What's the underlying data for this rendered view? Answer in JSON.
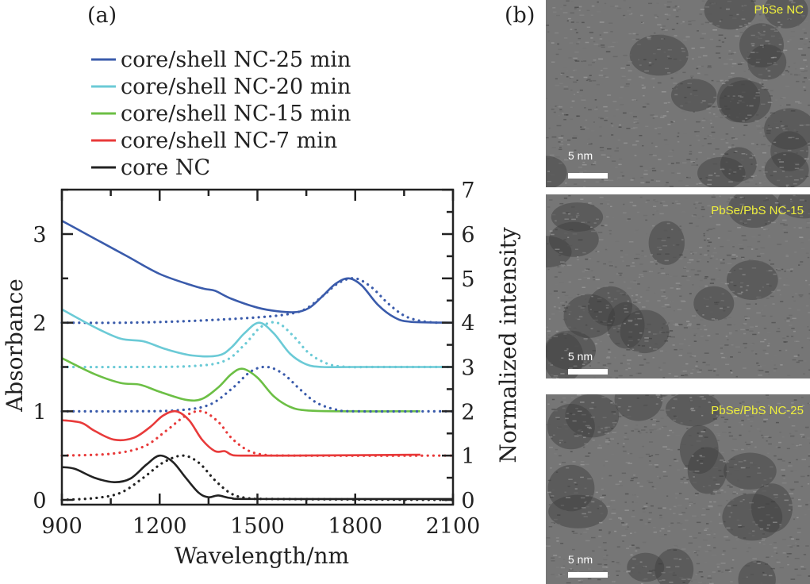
{
  "figure": {
    "panel_a_label": "(a)",
    "panel_b_label": "(b)"
  },
  "chart_data": {
    "type": "line",
    "title": "",
    "xlabel": "Wavelength/nm",
    "ylabel": "Absorbance",
    "y2label": "Normalized intensity",
    "xlim": [
      900,
      2100
    ],
    "ylim": [
      0,
      3.5
    ],
    "y2lim": [
      0,
      7
    ],
    "xticks": [
      900,
      1200,
      1500,
      1800,
      2100
    ],
    "yticks": [
      0,
      1,
      2,
      3
    ],
    "y2ticks": [
      0,
      1,
      2,
      3,
      4,
      5,
      6,
      7
    ],
    "grid": false,
    "legend_position": "top-left-above",
    "legend": [
      {
        "label": "core/shell NC-25 min",
        "color": "#3a5bab"
      },
      {
        "label": "core/shell NC-20 min",
        "color": "#6bcad6"
      },
      {
        "label": "core/shell NC-15 min",
        "color": "#6cbf45"
      },
      {
        "label": "core/shell NC-7 min",
        "color": "#e83a3a"
      },
      {
        "label": "core NC",
        "color": "#222222"
      }
    ],
    "series": [
      {
        "name": "core/shell NC-25 min absorbance",
        "style": "solid",
        "color": "#3a5bab",
        "x": [
          900,
          950,
          1000,
          1100,
          1200,
          1300,
          1340,
          1370,
          1420,
          1500,
          1560,
          1620,
          1660,
          1700,
          1740,
          1780,
          1820,
          1870,
          1920,
          1970,
          2100
        ],
        "y": [
          3.15,
          3.05,
          2.95,
          2.75,
          2.55,
          2.42,
          2.38,
          2.36,
          2.27,
          2.17,
          2.13,
          2.12,
          2.17,
          2.3,
          2.44,
          2.5,
          2.42,
          2.2,
          2.06,
          2.01,
          2.0
        ]
      },
      {
        "name": "core/shell NC-25 min PL",
        "style": "dotted",
        "color": "#3a5bab",
        "x": [
          900,
          1100,
          1300,
          1500,
          1600,
          1650,
          1700,
          1750,
          1800,
          1850,
          1900,
          1950,
          2000,
          2050
        ],
        "y": [
          2.0,
          2.0,
          2.02,
          2.06,
          2.1,
          2.16,
          2.3,
          2.45,
          2.5,
          2.4,
          2.22,
          2.08,
          2.02,
          2.0
        ]
      },
      {
        "name": "core/shell NC-20 min absorbance",
        "style": "solid",
        "color": "#6bcad6",
        "x": [
          900,
          1000,
          1080,
          1150,
          1220,
          1300,
          1380,
          1420,
          1460,
          1505,
          1550,
          1600,
          1650,
          1700,
          1800,
          2100
        ],
        "y": [
          2.15,
          1.95,
          1.82,
          1.79,
          1.7,
          1.63,
          1.63,
          1.72,
          1.88,
          2.0,
          1.88,
          1.65,
          1.53,
          1.5,
          1.5,
          1.5
        ]
      },
      {
        "name": "core/shell NC-20 min PL",
        "style": "dotted",
        "color": "#6bcad6",
        "x": [
          900,
          1100,
          1300,
          1400,
          1460,
          1510,
          1560,
          1610,
          1660,
          1720,
          1780,
          1850,
          2100
        ],
        "y": [
          1.5,
          1.5,
          1.51,
          1.57,
          1.75,
          1.95,
          2.0,
          1.85,
          1.65,
          1.53,
          1.5,
          1.5,
          1.5
        ]
      },
      {
        "name": "core/shell NC-15 min absorbance",
        "style": "solid",
        "color": "#6cbf45",
        "x": [
          900,
          1000,
          1080,
          1140,
          1200,
          1280,
          1330,
          1380,
          1420,
          1455,
          1500,
          1550,
          1600,
          1650,
          1750,
          2000
        ],
        "y": [
          1.6,
          1.42,
          1.32,
          1.3,
          1.22,
          1.13,
          1.14,
          1.27,
          1.42,
          1.48,
          1.38,
          1.17,
          1.05,
          1.01,
          1.0,
          1.0
        ]
      },
      {
        "name": "core/shell NC-15 min PL",
        "style": "dotted",
        "color": "#3a5bab",
        "x": [
          900,
          1100,
          1250,
          1350,
          1420,
          1480,
          1530,
          1580,
          1630,
          1680,
          1740,
          1800,
          2100
        ],
        "y": [
          1.0,
          1.0,
          1.01,
          1.07,
          1.25,
          1.45,
          1.5,
          1.42,
          1.25,
          1.1,
          1.02,
          1.0,
          1.0
        ]
      },
      {
        "name": "core/shell NC-7 min absorbance",
        "style": "solid",
        "color": "#e83a3a",
        "x": [
          900,
          960,
          1000,
          1060,
          1120,
          1170,
          1210,
          1250,
          1290,
          1330,
          1370,
          1400,
          1420,
          1450,
          1600,
          2000
        ],
        "y": [
          0.9,
          0.87,
          0.78,
          0.68,
          0.7,
          0.82,
          0.95,
          1.0,
          0.9,
          0.68,
          0.55,
          0.55,
          0.51,
          0.5,
          0.5,
          0.51
        ]
      },
      {
        "name": "core/shell NC-7 min PL",
        "style": "dotted",
        "color": "#e83a3a",
        "x": [
          900,
          1050,
          1150,
          1220,
          1280,
          1330,
          1380,
          1420,
          1470,
          1520,
          1600,
          2100
        ],
        "y": [
          0.5,
          0.52,
          0.6,
          0.78,
          0.95,
          1.0,
          0.88,
          0.7,
          0.56,
          0.51,
          0.5,
          0.5
        ]
      },
      {
        "name": "core NC absorbance",
        "style": "solid",
        "color": "#222222",
        "x": [
          900,
          940,
          1000,
          1060,
          1110,
          1160,
          1200,
          1240,
          1280,
          1320,
          1350,
          1380,
          1420,
          1500,
          2100
        ],
        "y": [
          0.37,
          0.35,
          0.25,
          0.2,
          0.24,
          0.4,
          0.5,
          0.43,
          0.25,
          0.08,
          0.03,
          0.05,
          0.02,
          0.01,
          0.01
        ]
      },
      {
        "name": "core NC PL",
        "style": "dotted",
        "color": "#222222",
        "x": [
          900,
          1000,
          1080,
          1150,
          1210,
          1270,
          1320,
          1370,
          1420,
          1470,
          1550,
          2100
        ],
        "y": [
          0.0,
          0.02,
          0.08,
          0.25,
          0.42,
          0.5,
          0.42,
          0.22,
          0.07,
          0.02,
          0.01,
          0.0
        ]
      }
    ]
  },
  "tem_images": [
    {
      "label": "PbSe NC",
      "scale_bar": "5 nm"
    },
    {
      "label": "PbSe/PbS NC-15",
      "scale_bar": "5 nm"
    },
    {
      "label": "PbSe/PbS NC-25",
      "scale_bar": "5 nm"
    }
  ]
}
